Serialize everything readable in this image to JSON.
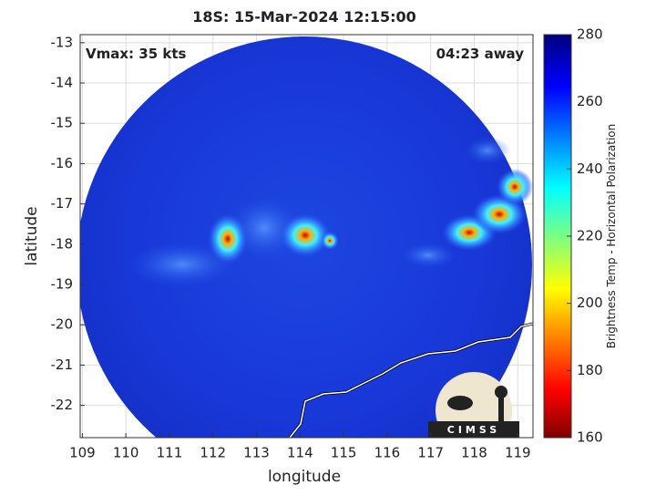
{
  "chart_data": {
    "type": "map",
    "title": "18S: 15-Mar-2024 12:15:00",
    "xlabel": "longitude",
    "ylabel": "latitude",
    "annotations": [
      "Vmax: 35 kts",
      "04:23 away"
    ],
    "xlim": [
      108.95,
      119.35
    ],
    "ylim": [
      -22.8,
      -12.8
    ],
    "xticks": [
      109,
      110,
      111,
      112,
      113,
      114,
      115,
      116,
      117,
      118,
      119
    ],
    "yticks": [
      -13,
      -14,
      -15,
      -16,
      -17,
      -18,
      -19,
      -20,
      -21,
      -22
    ],
    "grid": true,
    "colorbar": {
      "label": "Brightness Temp - Horizontal Polarization",
      "lim": [
        160,
        280
      ],
      "ticks": [
        160,
        180,
        200,
        220,
        240,
        260,
        280
      ]
    },
    "logo": "CIMSS"
  }
}
